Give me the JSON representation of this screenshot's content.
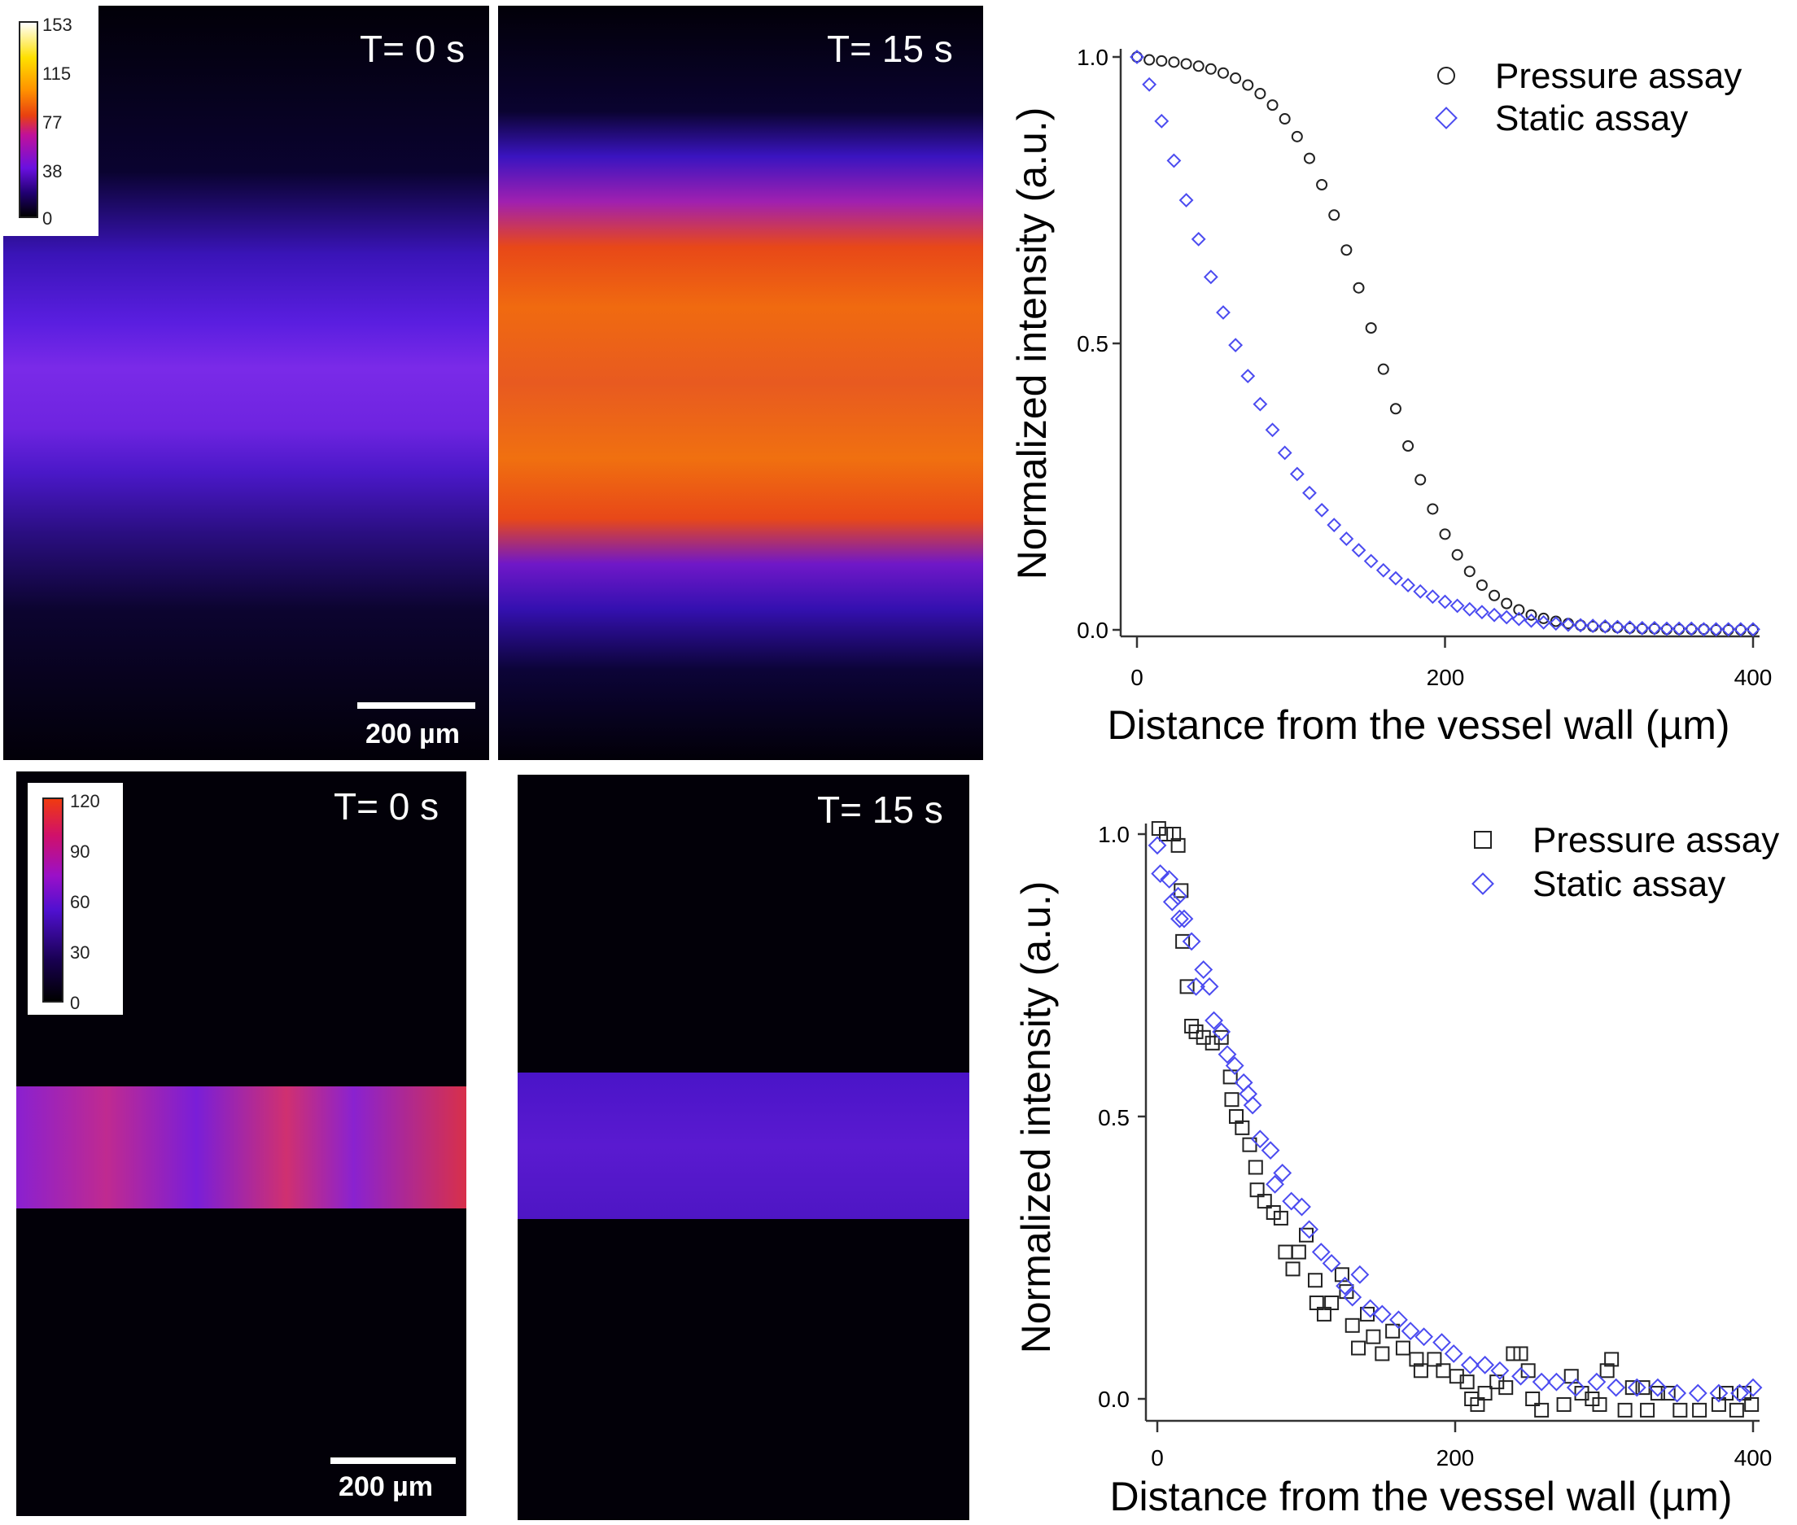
{
  "panels": {
    "top_left": {
      "time_label": "T= 0 s",
      "scale_label": "200 µm",
      "colorbar_ticks": [
        "153",
        "115",
        "77",
        "38",
        "0"
      ]
    },
    "top_right": {
      "time_label": "T= 15 s"
    },
    "bottom_left": {
      "time_label": "T= 0 s",
      "scale_label": "200 µm",
      "colorbar_ticks": [
        "120",
        "90",
        "60",
        "30",
        "0"
      ]
    },
    "bottom_right": {
      "time_label": "T= 15 s"
    }
  },
  "chart_data": [
    {
      "type": "scatter",
      "xlabel": "Distance from the vessel wall (µm)",
      "ylabel": "Normalized intensity (a.u.)",
      "xlim": [
        0,
        400
      ],
      "ylim": [
        0,
        1.0
      ],
      "xticks": [
        "0",
        "200",
        "400"
      ],
      "yticks": [
        "1.0",
        "0.5",
        "0.0"
      ],
      "grid": false,
      "legend_position": "top-right",
      "x": [
        0,
        8,
        16,
        24,
        32,
        40,
        48,
        56,
        64,
        72,
        80,
        88,
        96,
        104,
        112,
        120,
        128,
        136,
        144,
        152,
        160,
        168,
        176,
        184,
        192,
        200,
        208,
        216,
        224,
        232,
        240,
        248,
        256,
        264,
        272,
        280,
        288,
        296,
        304,
        312,
        320,
        328,
        336,
        344,
        352,
        360,
        368,
        376,
        384,
        392,
        400
      ],
      "series": [
        {
          "name": "Pressure assay",
          "marker": "circle",
          "color": "#222222",
          "values": [
            1.0,
            0.995,
            0.993,
            0.991,
            0.988,
            0.984,
            0.979,
            0.972,
            0.963,
            0.951,
            0.936,
            0.916,
            0.892,
            0.861,
            0.823,
            0.777,
            0.724,
            0.663,
            0.597,
            0.527,
            0.455,
            0.386,
            0.321,
            0.262,
            0.211,
            0.167,
            0.131,
            0.102,
            0.078,
            0.06,
            0.046,
            0.035,
            0.026,
            0.02,
            0.015,
            0.011,
            0.008,
            0.006,
            0.005,
            0.004,
            0.003,
            0.002,
            0.002,
            0.001,
            0.001,
            0.001,
            0.001,
            0.0,
            0.0,
            0.0,
            0.0
          ]
        },
        {
          "name": "Static assay",
          "marker": "diamond",
          "color": "#4b4bf0",
          "values": [
            1.0,
            0.952,
            0.888,
            0.819,
            0.75,
            0.682,
            0.616,
            0.554,
            0.497,
            0.443,
            0.394,
            0.349,
            0.309,
            0.272,
            0.239,
            0.209,
            0.183,
            0.159,
            0.139,
            0.12,
            0.104,
            0.09,
            0.078,
            0.067,
            0.058,
            0.049,
            0.042,
            0.036,
            0.031,
            0.026,
            0.022,
            0.019,
            0.016,
            0.013,
            0.011,
            0.009,
            0.008,
            0.007,
            0.006,
            0.005,
            0.004,
            0.003,
            0.003,
            0.002,
            0.002,
            0.002,
            0.001,
            0.001,
            0.001,
            0.001,
            0.001
          ]
        }
      ]
    },
    {
      "type": "scatter",
      "xlabel": "Distance from the vessel wall (µm)",
      "ylabel": "Normalized intensity (a.u.)",
      "xlim": [
        0,
        400
      ],
      "ylim": [
        0,
        1.0
      ],
      "xticks": [
        "0",
        "200",
        "400"
      ],
      "yticks": [
        "1.0",
        "0.5",
        "0.0"
      ],
      "grid": false,
      "legend_position": "top-right",
      "series": [
        {
          "name": "Pressure assay",
          "marker": "square",
          "color": "#222222",
          "points": [
            [
              1,
              1.01
            ],
            [
              6,
              1.0
            ],
            [
              11,
              1.0
            ],
            [
              14,
              0.98
            ],
            [
              16,
              0.9
            ],
            [
              17,
              0.81
            ],
            [
              20,
              0.73
            ],
            [
              23,
              0.66
            ],
            [
              26,
              0.65
            ],
            [
              31,
              0.64
            ],
            [
              37,
              0.63
            ],
            [
              43,
              0.64
            ],
            [
              49,
              0.57
            ],
            [
              50,
              0.53
            ],
            [
              53,
              0.5
            ],
            [
              57,
              0.48
            ],
            [
              62,
              0.45
            ],
            [
              66,
              0.41
            ],
            [
              67,
              0.37
            ],
            [
              72,
              0.35
            ],
            [
              78,
              0.33
            ],
            [
              83,
              0.32
            ],
            [
              86,
              0.26
            ],
            [
              91,
              0.23
            ],
            [
              95,
              0.26
            ],
            [
              100,
              0.29
            ],
            [
              106,
              0.21
            ],
            [
              107,
              0.17
            ],
            [
              112,
              0.15
            ],
            [
              117,
              0.17
            ],
            [
              124,
              0.22
            ],
            [
              127,
              0.19
            ],
            [
              131,
              0.13
            ],
            [
              135,
              0.09
            ],
            [
              141,
              0.15
            ],
            [
              145,
              0.11
            ],
            [
              151,
              0.08
            ],
            [
              158,
              0.12
            ],
            [
              165,
              0.09
            ],
            [
              174,
              0.07
            ],
            [
              177,
              0.05
            ],
            [
              186,
              0.07
            ],
            [
              192,
              0.05
            ],
            [
              201,
              0.04
            ],
            [
              208,
              0.03
            ],
            [
              211,
              0.0
            ],
            [
              215,
              -0.01
            ],
            [
              220,
              0.01
            ],
            [
              228,
              0.03
            ],
            [
              234,
              0.02
            ],
            [
              239,
              0.08
            ],
            [
              244,
              0.08
            ],
            [
              249,
              0.05
            ],
            [
              252,
              0.0
            ],
            [
              258,
              -0.02
            ],
            [
              273,
              -0.01
            ],
            [
              278,
              0.04
            ],
            [
              285,
              0.01
            ],
            [
              292,
              0.0
            ],
            [
              297,
              -0.01
            ],
            [
              302,
              0.05
            ],
            [
              305,
              0.07
            ],
            [
              314,
              -0.02
            ],
            [
              319,
              0.02
            ],
            [
              326,
              0.02
            ],
            [
              329,
              -0.02
            ],
            [
              336,
              0.01
            ],
            [
              343,
              0.01
            ],
            [
              351,
              -0.02
            ],
            [
              364,
              -0.02
            ],
            [
              377,
              -0.01
            ],
            [
              382,
              0.01
            ],
            [
              389,
              -0.02
            ],
            [
              394,
              0.01
            ],
            [
              399,
              -0.01
            ]
          ]
        },
        {
          "name": "Static assay",
          "marker": "diamond",
          "color": "#4b4bf0",
          "points": [
            [
              0,
              0.98
            ],
            [
              2,
              0.93
            ],
            [
              8,
              0.92
            ],
            [
              10,
              0.88
            ],
            [
              14,
              0.89
            ],
            [
              15,
              0.85
            ],
            [
              18,
              0.85
            ],
            [
              23,
              0.81
            ],
            [
              26,
              0.73
            ],
            [
              31,
              0.76
            ],
            [
              35,
              0.73
            ],
            [
              38,
              0.67
            ],
            [
              43,
              0.65
            ],
            [
              47,
              0.61
            ],
            [
              52,
              0.59
            ],
            [
              58,
              0.56
            ],
            [
              61,
              0.54
            ],
            [
              64,
              0.52
            ],
            [
              69,
              0.46
            ],
            [
              76,
              0.44
            ],
            [
              79,
              0.38
            ],
            [
              84,
              0.4
            ],
            [
              90,
              0.35
            ],
            [
              97,
              0.34
            ],
            [
              102,
              0.3
            ],
            [
              110,
              0.26
            ],
            [
              117,
              0.24
            ],
            [
              126,
              0.2
            ],
            [
              131,
              0.18
            ],
            [
              136,
              0.22
            ],
            [
              143,
              0.16
            ],
            [
              151,
              0.15
            ],
            [
              162,
              0.14
            ],
            [
              170,
              0.12
            ],
            [
              179,
              0.11
            ],
            [
              191,
              0.1
            ],
            [
              199,
              0.08
            ],
            [
              210,
              0.06
            ],
            [
              220,
              0.06
            ],
            [
              230,
              0.05
            ],
            [
              244,
              0.04
            ],
            [
              258,
              0.03
            ],
            [
              268,
              0.03
            ],
            [
              281,
              0.02
            ],
            [
              295,
              0.03
            ],
            [
              308,
              0.02
            ],
            [
              322,
              0.02
            ],
            [
              336,
              0.02
            ],
            [
              349,
              0.01
            ],
            [
              363,
              0.01
            ],
            [
              377,
              0.01
            ],
            [
              391,
              0.01
            ],
            [
              400,
              0.02
            ]
          ]
        }
      ]
    }
  ]
}
